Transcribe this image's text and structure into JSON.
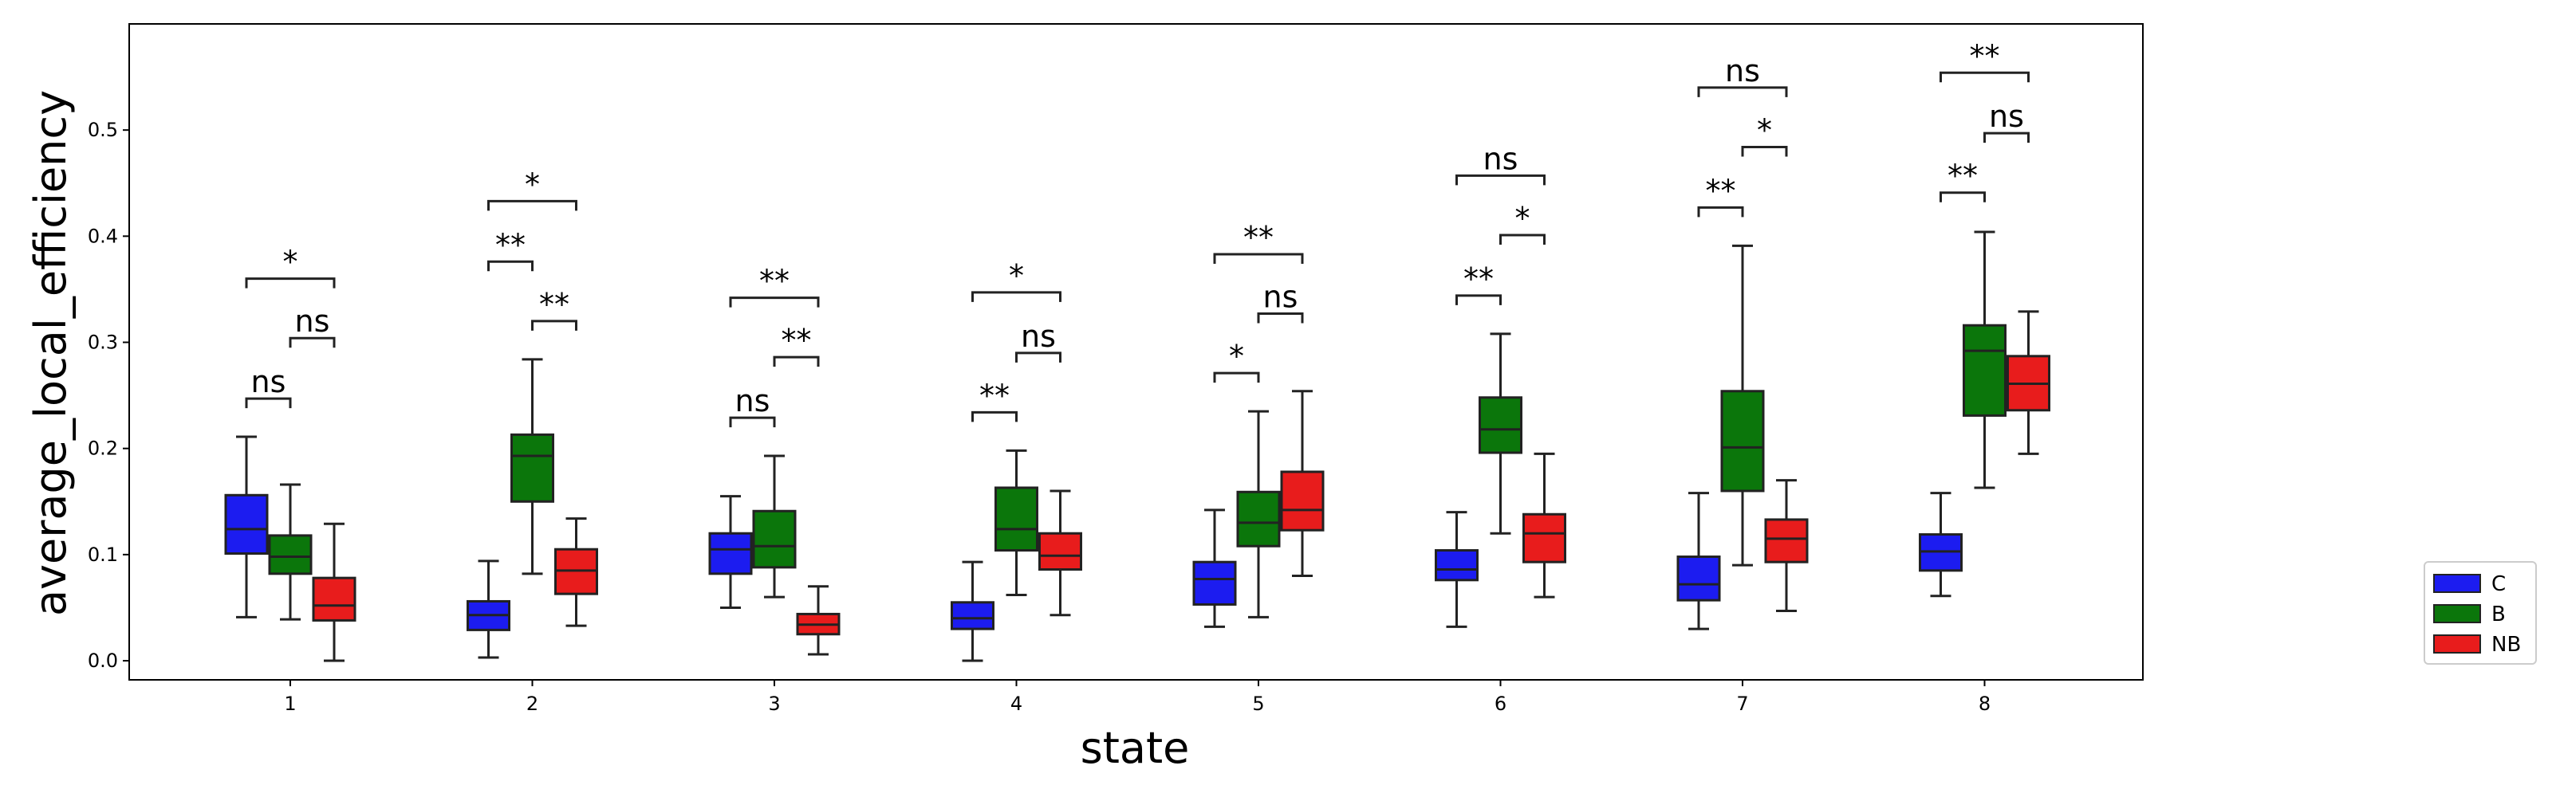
{
  "chart_data": {
    "type": "box",
    "xlabel": "state",
    "ylabel": "average_local_efficiency",
    "categories": [
      "1",
      "2",
      "3",
      "4",
      "5",
      "6",
      "7",
      "8"
    ],
    "ylim": [
      -0.018,
      0.6
    ],
    "yticks": [
      "0.0",
      "0.1",
      "0.2",
      "0.3",
      "0.4",
      "0.5"
    ],
    "ytick_values": [
      0.0,
      0.1,
      0.2,
      0.3,
      0.4,
      0.5
    ],
    "legend_position": "right-bottom, outside plot",
    "series": [
      {
        "name": "C",
        "color": "#1c1cf0",
        "boxes": [
          {
            "min": 0.041,
            "q1": 0.101,
            "median": 0.124,
            "q3": 0.156,
            "max": 0.211
          },
          {
            "min": 0.003,
            "q1": 0.029,
            "median": 0.043,
            "q3": 0.056,
            "max": 0.094
          },
          {
            "min": 0.05,
            "q1": 0.082,
            "median": 0.105,
            "q3": 0.12,
            "max": 0.155
          },
          {
            "min": 0.0,
            "q1": 0.03,
            "median": 0.04,
            "q3": 0.055,
            "max": 0.093
          },
          {
            "min": 0.032,
            "q1": 0.053,
            "median": 0.077,
            "q3": 0.093,
            "max": 0.142
          },
          {
            "min": 0.032,
            "q1": 0.076,
            "median": 0.086,
            "q3": 0.104,
            "max": 0.14
          },
          {
            "min": 0.03,
            "q1": 0.057,
            "median": 0.072,
            "q3": 0.098,
            "max": 0.158
          },
          {
            "min": 0.061,
            "q1": 0.085,
            "median": 0.103,
            "q3": 0.119,
            "max": 0.158
          }
        ]
      },
      {
        "name": "B",
        "color": "#0b760b",
        "boxes": [
          {
            "min": 0.039,
            "q1": 0.082,
            "median": 0.098,
            "q3": 0.118,
            "max": 0.166
          },
          {
            "min": 0.082,
            "q1": 0.15,
            "median": 0.193,
            "q3": 0.213,
            "max": 0.284
          },
          {
            "min": 0.06,
            "q1": 0.088,
            "median": 0.108,
            "q3": 0.141,
            "max": 0.193
          },
          {
            "min": 0.062,
            "q1": 0.104,
            "median": 0.124,
            "q3": 0.163,
            "max": 0.198
          },
          {
            "min": 0.041,
            "q1": 0.108,
            "median": 0.13,
            "q3": 0.159,
            "max": 0.235
          },
          {
            "min": 0.12,
            "q1": 0.196,
            "median": 0.218,
            "q3": 0.248,
            "max": 0.308
          },
          {
            "min": 0.09,
            "q1": 0.16,
            "median": 0.201,
            "q3": 0.254,
            "max": 0.391
          },
          {
            "min": 0.163,
            "q1": 0.231,
            "median": 0.292,
            "q3": 0.316,
            "max": 0.404
          }
        ]
      },
      {
        "name": "NB",
        "color": "#e81c1c",
        "boxes": [
          {
            "min": 0.0,
            "q1": 0.038,
            "median": 0.052,
            "q3": 0.078,
            "max": 0.129
          },
          {
            "min": 0.033,
            "q1": 0.063,
            "median": 0.085,
            "q3": 0.105,
            "max": 0.134
          },
          {
            "min": 0.006,
            "q1": 0.025,
            "median": 0.034,
            "q3": 0.044,
            "max": 0.07
          },
          {
            "min": 0.043,
            "q1": 0.086,
            "median": 0.099,
            "q3": 0.12,
            "max": 0.16
          },
          {
            "min": 0.08,
            "q1": 0.123,
            "median": 0.142,
            "q3": 0.178,
            "max": 0.254
          },
          {
            "min": 0.06,
            "q1": 0.093,
            "median": 0.12,
            "q3": 0.138,
            "max": 0.195
          },
          {
            "min": 0.047,
            "q1": 0.093,
            "median": 0.115,
            "q3": 0.133,
            "max": 0.17
          },
          {
            "min": 0.195,
            "q1": 0.236,
            "median": 0.261,
            "q3": 0.287,
            "max": 0.329
          }
        ]
      }
    ],
    "annotations": [
      {
        "category": "1",
        "from": "C",
        "to": "B",
        "y": 0.247,
        "label": "ns"
      },
      {
        "category": "1",
        "from": "B",
        "to": "NB",
        "y": 0.304,
        "label": "ns"
      },
      {
        "category": "1",
        "from": "C",
        "to": "NB",
        "y": 0.36,
        "label": "*"
      },
      {
        "category": "2",
        "from": "C",
        "to": "B",
        "y": 0.376,
        "label": "**"
      },
      {
        "category": "2",
        "from": "B",
        "to": "NB",
        "y": 0.32,
        "label": "**"
      },
      {
        "category": "2",
        "from": "C",
        "to": "NB",
        "y": 0.433,
        "label": "*"
      },
      {
        "category": "3",
        "from": "C",
        "to": "B",
        "y": 0.229,
        "label": "ns"
      },
      {
        "category": "3",
        "from": "B",
        "to": "NB",
        "y": 0.286,
        "label": "**"
      },
      {
        "category": "3",
        "from": "C",
        "to": "NB",
        "y": 0.342,
        "label": "**"
      },
      {
        "category": "4",
        "from": "C",
        "to": "B",
        "y": 0.234,
        "label": "**"
      },
      {
        "category": "4",
        "from": "B",
        "to": "NB",
        "y": 0.29,
        "label": "ns"
      },
      {
        "category": "4",
        "from": "C",
        "to": "NB",
        "y": 0.347,
        "label": "*"
      },
      {
        "category": "5",
        "from": "C",
        "to": "B",
        "y": 0.271,
        "label": "*"
      },
      {
        "category": "5",
        "from": "B",
        "to": "NB",
        "y": 0.327,
        "label": "ns"
      },
      {
        "category": "5",
        "from": "C",
        "to": "NB",
        "y": 0.383,
        "label": "**"
      },
      {
        "category": "6",
        "from": "C",
        "to": "B",
        "y": 0.344,
        "label": "**"
      },
      {
        "category": "6",
        "from": "B",
        "to": "NB",
        "y": 0.401,
        "label": "*"
      },
      {
        "category": "6",
        "from": "C",
        "to": "NB",
        "y": 0.457,
        "label": "ns"
      },
      {
        "category": "7",
        "from": "C",
        "to": "B",
        "y": 0.427,
        "label": "**"
      },
      {
        "category": "7",
        "from": "B",
        "to": "NB",
        "y": 0.484,
        "label": "*"
      },
      {
        "category": "7",
        "from": "C",
        "to": "NB",
        "y": 0.54,
        "label": "ns"
      },
      {
        "category": "8",
        "from": "C",
        "to": "B",
        "y": 0.441,
        "label": "**"
      },
      {
        "category": "8",
        "from": "B",
        "to": "NB",
        "y": 0.497,
        "label": "ns"
      },
      {
        "category": "8",
        "from": "C",
        "to": "NB",
        "y": 0.554,
        "label": "**"
      }
    ]
  }
}
